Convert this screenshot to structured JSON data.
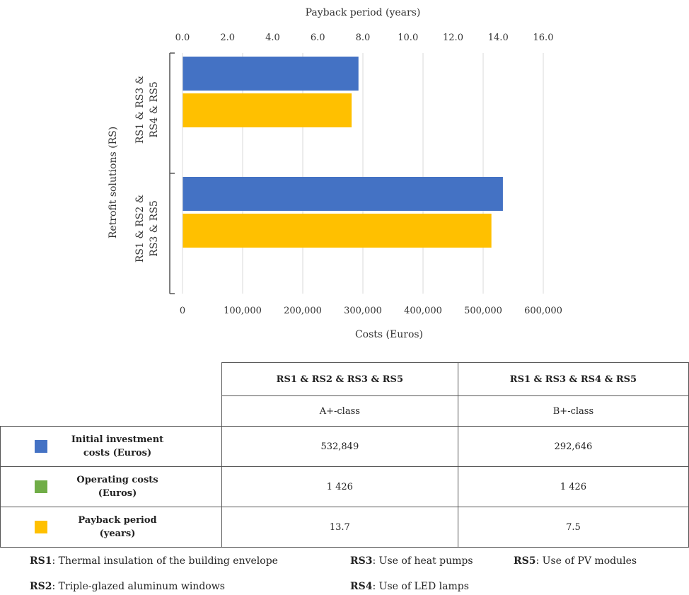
{
  "chart_data": {
    "type": "bar",
    "orientation": "horizontal",
    "y_axis_title": "Retrofit solutions (RS)",
    "categories": [
      [
        "RS1 & RS3 &",
        "RS4 & RS5"
      ],
      [
        "RS1 & RS2 &",
        "RS3 & RS5"
      ]
    ],
    "series": [
      {
        "name": "Initial investment costs (Euros)",
        "axis": "bottom",
        "color": "#4472C4",
        "values": [
          292646,
          532849
        ]
      },
      {
        "name": "Payback period (years)",
        "axis": "top",
        "color": "#FFC000",
        "values": [
          7.5,
          13.7
        ]
      }
    ],
    "bottom_axis": {
      "title": "Costs (Euros)",
      "range": [
        0,
        600000
      ],
      "ticks": [
        0,
        100000,
        200000,
        300000,
        400000,
        500000,
        600000
      ],
      "tick_labels": [
        "0",
        "100,000",
        "200,000",
        "300,000",
        "400,000",
        "500,000",
        "600,000"
      ]
    },
    "top_axis": {
      "title": "Payback period (years)",
      "range": [
        0,
        16
      ],
      "ticks": [
        0,
        2,
        4,
        6,
        8,
        10,
        12,
        14,
        16
      ],
      "tick_labels": [
        "0.0",
        "2.0",
        "4.0",
        "6.0",
        "8.0",
        "10.0",
        "12.0",
        "14.0",
        "16.0"
      ]
    },
    "grid": true
  },
  "table": {
    "headers": [
      "RS1 & RS2 & RS3 & RS5",
      "RS1 & RS3 & RS4 & RS5"
    ],
    "classes": [
      "A+-class",
      "B+-class"
    ],
    "rows": [
      {
        "label": "Initial investment\ncosts (Euros)",
        "color": "#4472C4",
        "values": [
          "532,849",
          "292,646"
        ]
      },
      {
        "label": "Operating costs\n(Euros)",
        "color": "#70AD47",
        "values": [
          "1 426",
          "1 426"
        ]
      },
      {
        "label": "Payback period\n(years)",
        "color": "#FFC000",
        "values": [
          "13.7",
          "7.5"
        ]
      }
    ]
  },
  "legend": {
    "rs1": {
      "code": "RS1",
      "text": ": Thermal insulation of the building envelope"
    },
    "rs2": {
      "code": "RS2",
      "text": ": Triple-glazed aluminum windows"
    },
    "rs3": {
      "code": "RS3",
      "text": ": Use of heat pumps"
    },
    "rs4": {
      "code": "RS4",
      "text": ": Use of LED lamps"
    },
    "rs5": {
      "code": "RS5",
      "text": ": Use of PV modules"
    }
  }
}
